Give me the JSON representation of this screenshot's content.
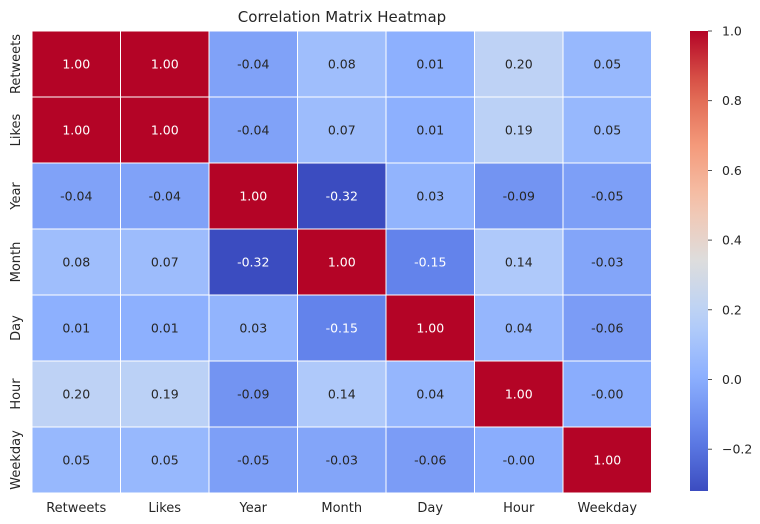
{
  "chart_data": {
    "type": "heatmap",
    "title": "Correlation Matrix Heatmap",
    "xlabel": "",
    "ylabel": "",
    "x_categories": [
      "Retweets",
      "Likes",
      "Year",
      "Month",
      "Day",
      "Hour",
      "Weekday"
    ],
    "y_categories": [
      "Retweets",
      "Likes",
      "Year",
      "Month",
      "Day",
      "Hour",
      "Weekday"
    ],
    "values": [
      [
        1.0,
        1.0,
        -0.04,
        0.08,
        0.01,
        0.2,
        0.05
      ],
      [
        1.0,
        1.0,
        -0.04,
        0.07,
        0.01,
        0.19,
        0.05
      ],
      [
        -0.04,
        -0.04,
        1.0,
        -0.32,
        0.03,
        -0.09,
        -0.05
      ],
      [
        0.08,
        0.07,
        -0.32,
        1.0,
        -0.15,
        0.14,
        -0.03
      ],
      [
        0.01,
        0.01,
        0.03,
        -0.15,
        1.0,
        0.04,
        -0.06
      ],
      [
        0.2,
        0.19,
        -0.09,
        0.14,
        0.04,
        1.0,
        -0.0
      ],
      [
        0.05,
        0.05,
        -0.05,
        -0.03,
        -0.06,
        -0.0,
        1.0
      ]
    ],
    "annotation_format": "0.00",
    "colormap": "coolwarm",
    "vmin": -0.32,
    "vmax": 1.0,
    "colorbar_ticks": [
      1.0,
      0.8,
      0.6,
      0.4,
      0.2,
      0.0,
      -0.2
    ],
    "colorbar_tick_labels": [
      "1.0",
      "0.8",
      "0.6",
      "0.4",
      "0.2",
      "0.0",
      "−0.2"
    ],
    "grid": false,
    "cell_border_color": "#ffffff",
    "text_color_light": "#ffffff",
    "text_color_dark": "#262626"
  }
}
